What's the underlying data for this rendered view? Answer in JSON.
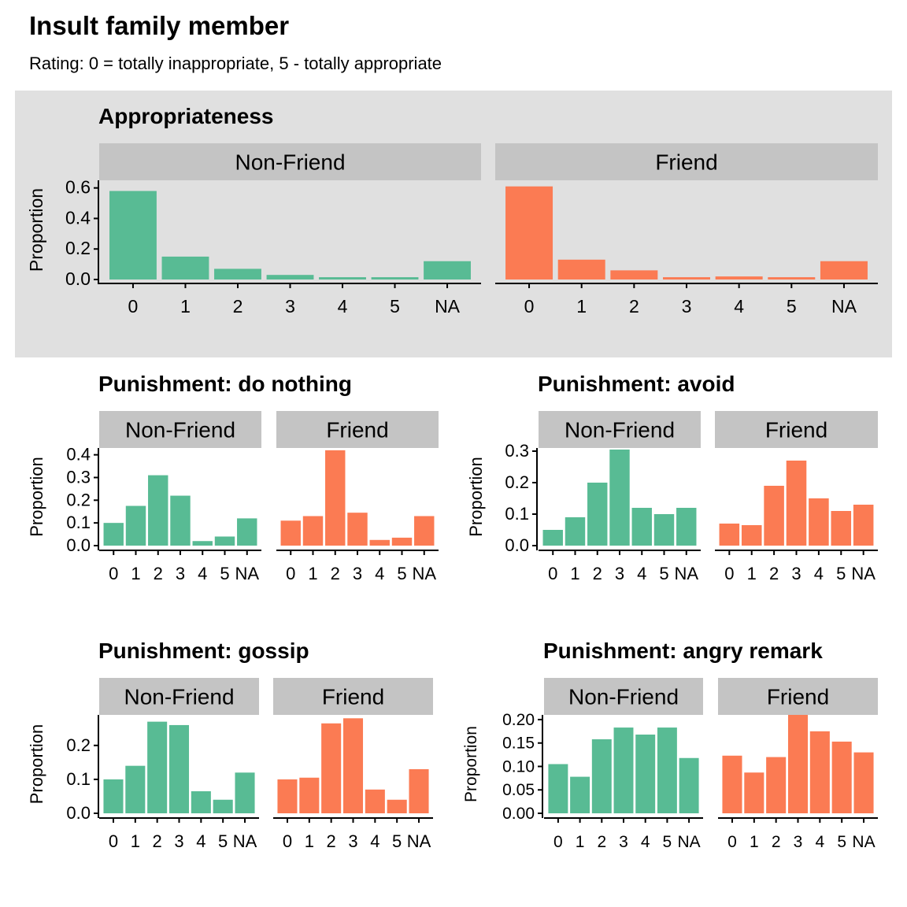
{
  "title": "Insult family member",
  "subtitle": "Rating: 0 = totally inappropriate, 5 - totally appropriate",
  "colors": {
    "non_friend": "#58BB94",
    "friend": "#FB7B53",
    "highlight_panel": "#E0E0E0",
    "strip": "#C4C4C4"
  },
  "chart_data": [
    {
      "type": "bar",
      "title": "Appropriateness",
      "ylabel": "Proportion",
      "xlabel": "",
      "ylim": [
        0,
        0.65
      ],
      "yticks": [
        "0.0",
        "0.2",
        "0.4",
        "0.6"
      ],
      "categories": [
        "0",
        "1",
        "2",
        "3",
        "4",
        "5",
        "NA"
      ],
      "series": [
        {
          "name": "Non-Friend",
          "values": [
            0.58,
            0.15,
            0.07,
            0.03,
            0.015,
            0.015,
            0.12
          ]
        },
        {
          "name": "Friend",
          "values": [
            0.61,
            0.13,
            0.06,
            0.015,
            0.02,
            0.015,
            0.12
          ]
        }
      ]
    },
    {
      "type": "bar",
      "title": "Punishment: do nothing",
      "ylabel": "Proportion",
      "xlabel": "",
      "ylim": [
        0,
        0.43
      ],
      "yticks": [
        "0.0",
        "0.1",
        "0.2",
        "0.3",
        "0.4"
      ],
      "categories": [
        "0",
        "1",
        "2",
        "3",
        "4",
        "5",
        "NA"
      ],
      "series": [
        {
          "name": "Non-Friend",
          "values": [
            0.1,
            0.175,
            0.31,
            0.22,
            0.02,
            0.04,
            0.12
          ]
        },
        {
          "name": "Friend",
          "values": [
            0.11,
            0.13,
            0.42,
            0.145,
            0.025,
            0.035,
            0.13
          ]
        }
      ]
    },
    {
      "type": "bar",
      "title": "Punishment: avoid",
      "ylabel": "Proportion",
      "xlabel": "",
      "ylim": [
        0,
        0.31
      ],
      "yticks": [
        "0.0",
        "0.1",
        "0.2",
        "0.3"
      ],
      "categories": [
        "0",
        "1",
        "2",
        "3",
        "4",
        "5",
        "NA"
      ],
      "series": [
        {
          "name": "Non-Friend",
          "values": [
            0.05,
            0.09,
            0.2,
            0.305,
            0.12,
            0.1,
            0.12
          ]
        },
        {
          "name": "Friend",
          "values": [
            0.07,
            0.065,
            0.19,
            0.27,
            0.15,
            0.11,
            0.13
          ]
        }
      ]
    },
    {
      "type": "bar",
      "title": "Punishment: gossip",
      "ylabel": "Proportion",
      "xlabel": "",
      "ylim": [
        0,
        0.29
      ],
      "yticks": [
        "0.0",
        "0.1",
        "0.2"
      ],
      "categories": [
        "0",
        "1",
        "2",
        "3",
        "4",
        "5",
        "NA"
      ],
      "series": [
        {
          "name": "Non-Friend",
          "values": [
            0.1,
            0.14,
            0.27,
            0.26,
            0.065,
            0.04,
            0.12
          ]
        },
        {
          "name": "Friend",
          "values": [
            0.1,
            0.105,
            0.265,
            0.28,
            0.07,
            0.04,
            0.13
          ]
        }
      ]
    },
    {
      "type": "bar",
      "title": "Punishment: angry remark",
      "ylabel": "Proportion",
      "xlabel": "",
      "ylim": [
        0,
        0.21
      ],
      "yticks": [
        "0.00",
        "0.05",
        "0.10",
        "0.15",
        "0.20"
      ],
      "categories": [
        "0",
        "1",
        "2",
        "3",
        "4",
        "5",
        "NA"
      ],
      "series": [
        {
          "name": "Non-Friend",
          "values": [
            0.105,
            0.078,
            0.158,
            0.183,
            0.168,
            0.183,
            0.118
          ]
        },
        {
          "name": "Friend",
          "values": [
            0.123,
            0.087,
            0.12,
            0.21,
            0.175,
            0.153,
            0.13
          ]
        }
      ]
    }
  ]
}
